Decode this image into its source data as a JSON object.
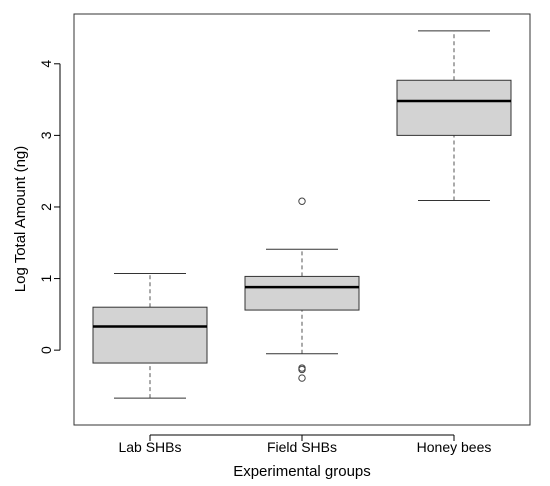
{
  "chart_data": {
    "type": "boxplot",
    "title": "",
    "xlabel": "Experimental groups",
    "ylabel": "Log Total Amount (ng)",
    "ylim": [
      -0.85,
      4.5
    ],
    "yticks": [
      0,
      1,
      2,
      3,
      4
    ],
    "grid": false,
    "categories": [
      "Lab SHBs",
      "Field SHBs",
      "Honey bees"
    ],
    "box_color": "#d3d3d3",
    "groups": [
      {
        "label": "Lab SHBs",
        "whisker_low": -0.67,
        "q1": -0.18,
        "median": 0.33,
        "q3": 0.6,
        "whisker_high": 1.07,
        "outliers": []
      },
      {
        "label": "Field SHBs",
        "whisker_low": -0.05,
        "q1": 0.56,
        "median": 0.88,
        "q3": 1.03,
        "whisker_high": 1.41,
        "outliers": [
          2.08,
          -0.25,
          -0.27,
          -0.39
        ]
      },
      {
        "label": "Honey bees",
        "whisker_low": 2.09,
        "q1": 3.0,
        "median": 3.48,
        "q3": 3.77,
        "whisker_high": 4.46,
        "outliers": []
      }
    ]
  }
}
